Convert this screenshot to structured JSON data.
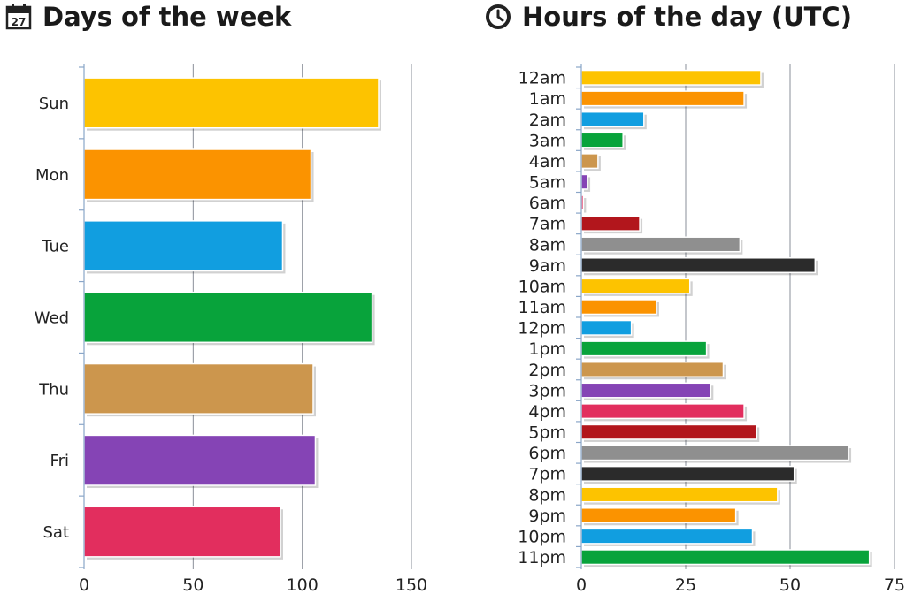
{
  "chart_data": [
    {
      "type": "bar",
      "orientation": "horizontal",
      "title": "Days of the week",
      "title_icon": "calendar-icon",
      "calendar_number": "27",
      "categories": [
        "Sun",
        "Mon",
        "Tue",
        "Wed",
        "Thu",
        "Fri",
        "Sat"
      ],
      "values": [
        135,
        104,
        91,
        132,
        105,
        106,
        90
      ],
      "colors": [
        "#fdc300",
        "#fb9300",
        "#119ee0",
        "#08a33b",
        "#cc964d",
        "#8544b5",
        "#e22e5e"
      ],
      "xlim": [
        0,
        150
      ],
      "xticks": [
        0,
        50,
        100,
        150
      ],
      "grid": true
    },
    {
      "type": "bar",
      "orientation": "horizontal",
      "title": "Hours of the day (UTC)",
      "title_icon": "clock-icon",
      "categories": [
        "12am",
        "1am",
        "2am",
        "3am",
        "4am",
        "5am",
        "6am",
        "7am",
        "8am",
        "9am",
        "10am",
        "11am",
        "12pm",
        "1pm",
        "2pm",
        "3pm",
        "4pm",
        "5pm",
        "6pm",
        "7pm",
        "8pm",
        "9pm",
        "10pm",
        "11pm"
      ],
      "values": [
        43,
        39,
        15,
        10,
        4,
        1.5,
        0.5,
        14,
        38,
        56,
        26,
        18,
        12,
        30,
        34,
        31,
        39,
        42,
        64,
        51,
        47,
        37,
        41,
        69
      ],
      "colors": [
        "#fdc300",
        "#fb9300",
        "#119ee0",
        "#08a33b",
        "#cc964d",
        "#8544b5",
        "#e22e5e",
        "#b2161c",
        "#8f8f8f",
        "#2b2b2b",
        "#fdc300",
        "#fb9300",
        "#119ee0",
        "#08a33b",
        "#cc964d",
        "#8544b5",
        "#e22e5e",
        "#b2161c",
        "#8f8f8f",
        "#2b2b2b",
        "#fdc300",
        "#fb9300",
        "#119ee0",
        "#08a33b"
      ],
      "xlim": [
        0,
        75
      ],
      "xticks": [
        0,
        25,
        50,
        75
      ],
      "grid": true
    }
  ]
}
